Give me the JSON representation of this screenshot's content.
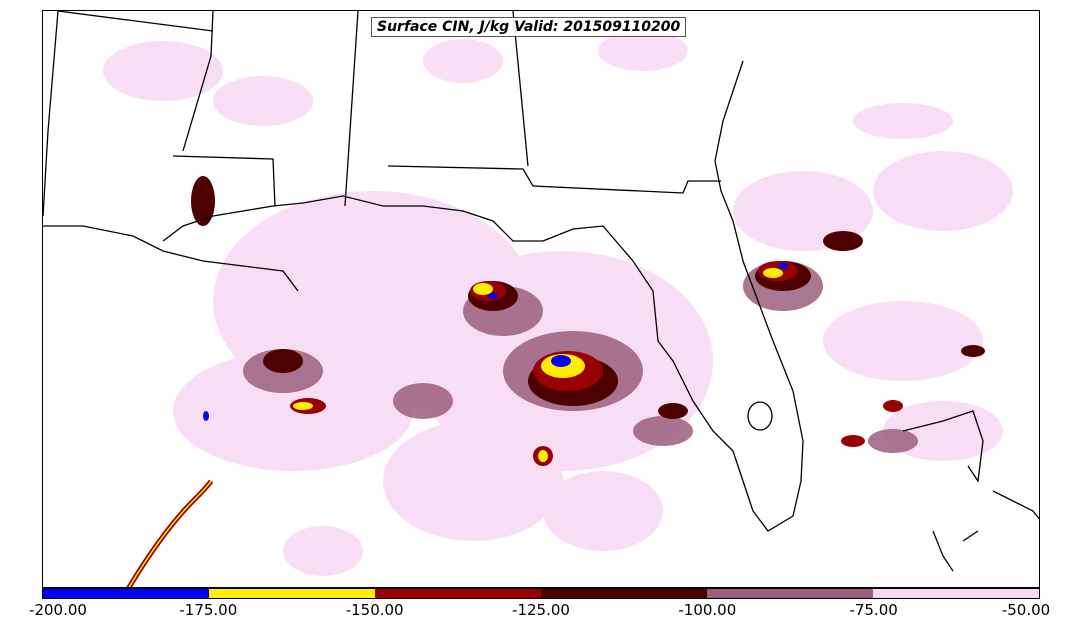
{
  "map": {
    "title": "Surface CIN, J/kg Valid: 201509110200",
    "colors": {
      "coast": "#000000",
      "field_light": "#f7d9f4",
      "field_mid": "#9b5f7d",
      "field_dark": "#4d0000",
      "field_red": "#990000",
      "field_yellow": "#ffee00",
      "field_blue": "#0000ff"
    }
  },
  "colorbar": {
    "segments": [
      {
        "color": "#0000ff"
      },
      {
        "color": "#ffee00"
      },
      {
        "color": "#990000"
      },
      {
        "color": "#4d0000"
      },
      {
        "color": "#9b5f7d"
      },
      {
        "color": "#f7d9f4"
      }
    ],
    "ticks": [
      "-200.00",
      "-175.00",
      "-150.00",
      "-125.00",
      "-100.00",
      "-75.00",
      "-50.00"
    ]
  }
}
